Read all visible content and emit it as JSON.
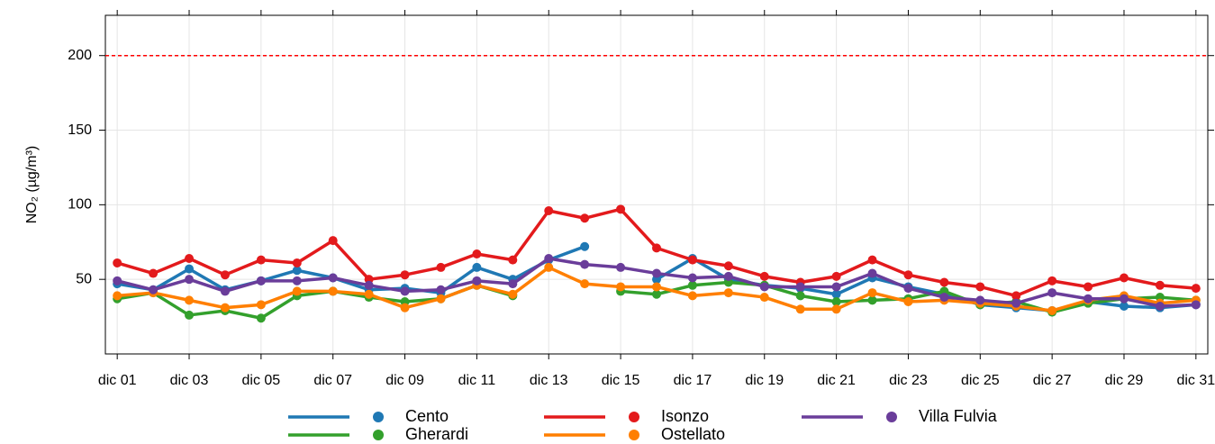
{
  "chart_data": {
    "type": "line",
    "ylabel": "NO₂ (µg/m³)",
    "categories": [
      "dic 01",
      null,
      "dic 03",
      null,
      "dic 05",
      null,
      "dic 07",
      null,
      "dic 09",
      null,
      "dic 11",
      null,
      "dic 13",
      null,
      "dic 15",
      null,
      "dic 17",
      null,
      "dic 19",
      null,
      "dic 21",
      null,
      "dic 23",
      null,
      "dic 25",
      null,
      "dic 27",
      null,
      "dic 29",
      null,
      "dic 31"
    ],
    "series": [
      {
        "name": "Cento",
        "color": "#1f78b4",
        "values": [
          47,
          43,
          57,
          43,
          49,
          56,
          51,
          43,
          44,
          41,
          58,
          50,
          63,
          72,
          null,
          50,
          64,
          50,
          46,
          44,
          40,
          51,
          45,
          40,
          33,
          31,
          29,
          35,
          32,
          31,
          33
        ]
      },
      {
        "name": "Gherardi",
        "color": "#33a02c",
        "values": [
          37,
          41,
          26,
          29,
          24,
          39,
          42,
          38,
          35,
          37,
          46,
          39,
          null,
          null,
          42,
          40,
          46,
          48,
          46,
          39,
          35,
          36,
          37,
          42,
          33,
          35,
          28,
          34,
          37,
          38,
          36
        ]
      },
      {
        "name": "Isonzo",
        "color": "#e31a1c",
        "values": [
          61,
          54,
          64,
          53,
          63,
          61,
          76,
          50,
          53,
          58,
          67,
          63,
          96,
          91,
          97,
          71,
          63,
          59,
          52,
          48,
          52,
          63,
          53,
          48,
          45,
          39,
          49,
          45,
          51,
          46,
          44
        ]
      },
      {
        "name": "Ostellato",
        "color": "#ff7f00",
        "values": [
          39,
          41,
          36,
          31,
          33,
          42,
          42,
          40,
          31,
          37,
          46,
          40,
          58,
          47,
          45,
          45,
          39,
          41,
          38,
          30,
          30,
          41,
          35,
          36,
          34,
          32,
          29,
          36,
          39,
          34,
          36
        ]
      },
      {
        "name": "Villa Fulvia",
        "color": "#6a3d9a",
        "values": [
          49,
          43,
          50,
          42,
          49,
          49,
          51,
          46,
          42,
          43,
          49,
          47,
          64,
          60,
          58,
          54,
          51,
          52,
          45,
          45,
          45,
          54,
          44,
          38,
          36,
          34,
          41,
          37,
          37,
          32,
          33
        ]
      }
    ],
    "ylim": [
      0,
      227
    ],
    "yticks": [
      50,
      100,
      150,
      200
    ],
    "grid": true,
    "hlines": [
      {
        "value": 200,
        "color": "#ff0000"
      }
    ]
  }
}
